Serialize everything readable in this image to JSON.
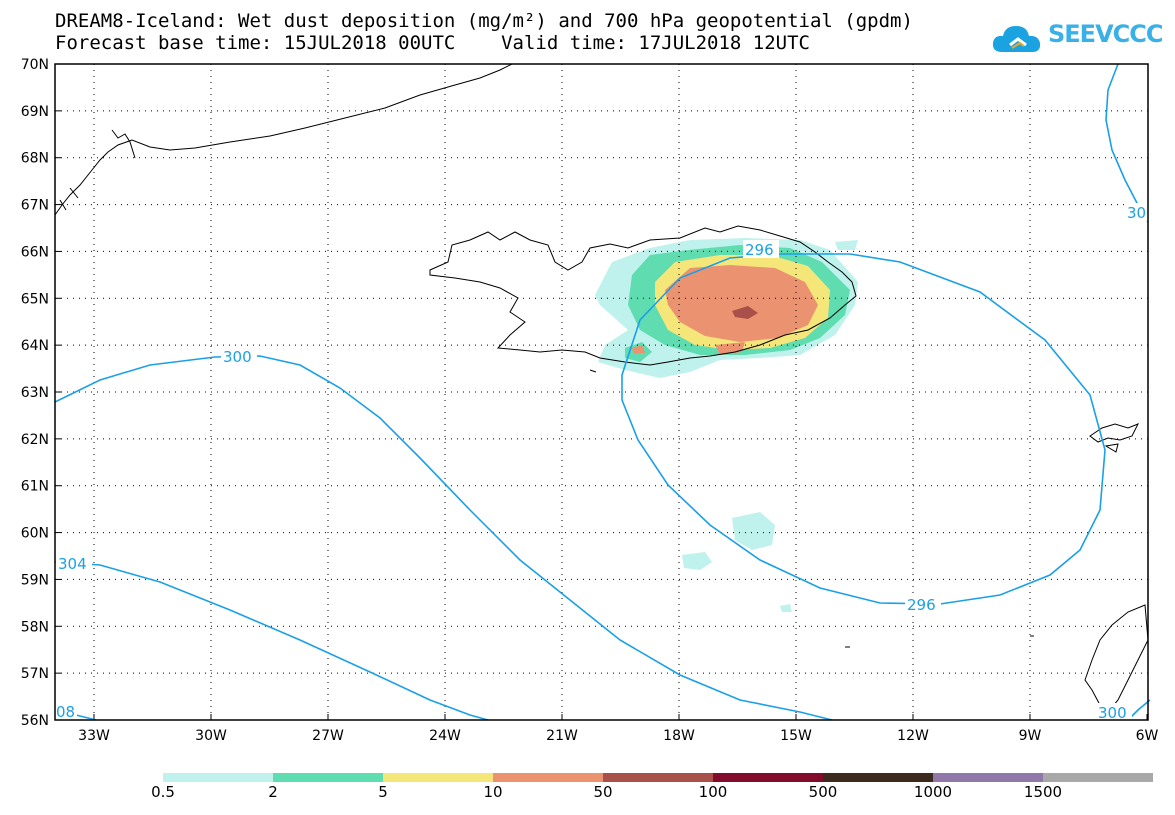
{
  "title": {
    "line1": "DREAM8-Iceland: Wet dust deposition (mg/m²) and 700 hPa geopotential (gpdm)",
    "line2": "Forecast base time: 15JUL2018 00UTC    Valid time: 17JUL2018 12UTC"
  },
  "logo": {
    "text": "SEEVCCC",
    "icon": "cloud-icon"
  },
  "axes": {
    "lat_labels": [
      "70N",
      "69N",
      "68N",
      "67N",
      "66N",
      "65N",
      "64N",
      "63N",
      "62N",
      "61N",
      "60N",
      "59N",
      "58N",
      "57N",
      "56N"
    ],
    "lon_labels": [
      "33W",
      "30W",
      "27W",
      "24W",
      "21W",
      "18W",
      "15W",
      "12W",
      "9W",
      "6W"
    ]
  },
  "contours": {
    "labels": [
      "300",
      "304",
      "296",
      "296",
      "30",
      "300",
      "08"
    ]
  },
  "colorbar": {
    "labels": [
      "0.5",
      "2",
      "5",
      "10",
      "50",
      "100",
      "500",
      "1000",
      "1500"
    ],
    "colors": [
      "#bff2ec",
      "#5fdcb0",
      "#f5e67a",
      "#eb9270",
      "#a9504a",
      "#820c2c",
      "#3c2a1e",
      "#9078aa",
      "#a8a8a8"
    ]
  },
  "colors": {
    "contour": "#1aa0e8",
    "coast": "#000000",
    "grid": "#000000"
  }
}
